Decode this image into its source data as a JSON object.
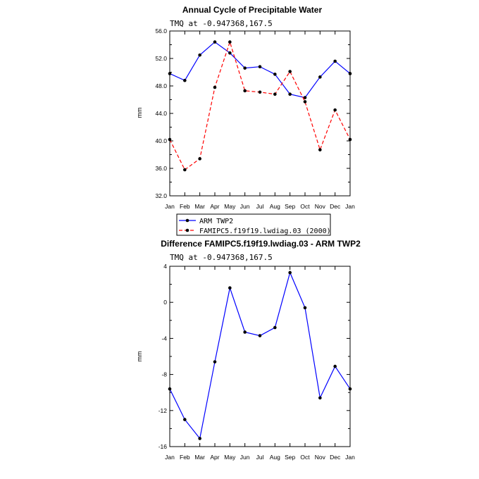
{
  "chart_data": [
    {
      "type": "line",
      "title": "Annual Cycle of Precipitable Water",
      "subtitle": "TMQ at -0.947368,167.5",
      "ylabel": "mm",
      "ylim": [
        32,
        56
      ],
      "yticks": [
        "32.0",
        "36.0",
        "40.0",
        "44.0",
        "48.0",
        "52.0",
        "56.0"
      ],
      "ytick_values": [
        32,
        36,
        40,
        44,
        48,
        52,
        56
      ],
      "categories": [
        "Jan",
        "Feb",
        "Mar",
        "Apr",
        "May",
        "Jun",
        "Jul",
        "Aug",
        "Sep",
        "Oct",
        "Nov",
        "Dec",
        "Jan"
      ],
      "series": [
        {
          "name": "ARM TWP2",
          "color": "#0000ff",
          "dash": "solid",
          "values": [
            49.8,
            48.8,
            52.5,
            54.4,
            52.8,
            50.6,
            50.8,
            49.7,
            46.8,
            46.3,
            49.3,
            51.6,
            49.8
          ]
        },
        {
          "name": "FAMIPC5.f19f19.lwdiag.03 (2000)",
          "color": "#ff0000",
          "dash": "dashed",
          "values": [
            40.2,
            35.8,
            37.4,
            47.8,
            54.4,
            47.3,
            47.1,
            46.8,
            50.1,
            45.7,
            38.7,
            44.5,
            40.2
          ]
        }
      ],
      "legend": "bottom"
    },
    {
      "type": "line",
      "title": "Difference FAMIPC5.f19f19.lwdiag.03 - ARM TWP2",
      "subtitle": "TMQ at -0.947368,167.5",
      "ylabel": "mm",
      "ylim": [
        -16,
        4
      ],
      "yticks": [
        "-16",
        "-12",
        "-8",
        "-4",
        "0",
        "4"
      ],
      "ytick_values": [
        -16,
        -12,
        -8,
        -4,
        0,
        4
      ],
      "categories": [
        "Jan",
        "Feb",
        "Mar",
        "Apr",
        "May",
        "Jun",
        "Jul",
        "Aug",
        "Sep",
        "Oct",
        "Nov",
        "Dec",
        "Jan"
      ],
      "series": [
        {
          "color": "#0000ff",
          "dash": "solid",
          "values": [
            -9.6,
            -13.0,
            -15.1,
            -6.6,
            1.6,
            -3.3,
            -3.7,
            -2.8,
            3.3,
            -0.6,
            -10.6,
            -7.1,
            -9.6
          ]
        }
      ]
    }
  ]
}
